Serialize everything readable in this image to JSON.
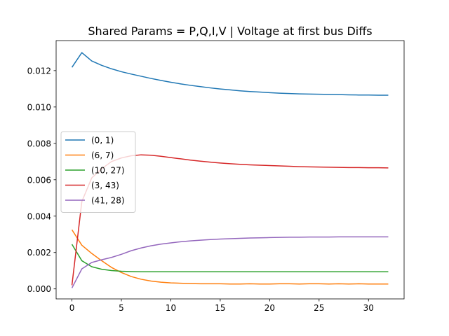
{
  "chart_data": {
    "type": "line",
    "title": "Shared Params =  P,Q,I,V | Voltage at first bus Diffs",
    "xlabel": "",
    "ylabel": "",
    "xlim": [
      -1.6,
      33.6
    ],
    "ylim": [
      -0.00055,
      0.01365
    ],
    "xticks": [
      0,
      5,
      10,
      15,
      20,
      25,
      30
    ],
    "xtick_labels": [
      "0",
      "5",
      "10",
      "15",
      "20",
      "25",
      "30"
    ],
    "yticks": [
      0.0,
      0.002,
      0.004,
      0.006,
      0.008,
      0.01,
      0.012
    ],
    "ytick_labels": [
      "0.000",
      "0.002",
      "0.004",
      "0.006",
      "0.008",
      "0.010",
      "0.012"
    ],
    "grid": false,
    "legend_position": "center-left",
    "x": [
      0,
      1,
      2,
      3,
      4,
      5,
      6,
      7,
      8,
      9,
      10,
      11,
      12,
      13,
      14,
      15,
      16,
      17,
      18,
      19,
      20,
      21,
      22,
      23,
      24,
      25,
      26,
      27,
      28,
      29,
      30,
      31,
      32
    ],
    "series": [
      {
        "name": "(0, 1)",
        "color": "#1f77b4",
        "values": [
          0.01218,
          0.01299,
          0.01253,
          0.01229,
          0.0121,
          0.01194,
          0.01181,
          0.01169,
          0.01157,
          0.01146,
          0.01136,
          0.01127,
          0.01119,
          0.01112,
          0.01105,
          0.01099,
          0.01094,
          0.01089,
          0.01085,
          0.01082,
          0.01079,
          0.01076,
          0.01074,
          0.01072,
          0.01071,
          0.0107,
          0.01069,
          0.01068,
          0.01067,
          0.01066,
          0.01066,
          0.01065,
          0.01065
        ]
      },
      {
        "name": "(6, 7)",
        "color": "#ff7f0e",
        "values": [
          0.00325,
          0.0024,
          0.00195,
          0.00155,
          0.00118,
          0.0009,
          0.00068,
          0.00053,
          0.00043,
          0.00037,
          0.00033,
          0.00031,
          0.00029,
          0.00028,
          0.00028,
          0.00028,
          0.00027,
          0.00027,
          0.00028,
          0.00027,
          0.00027,
          0.00028,
          0.00028,
          0.00027,
          0.00028,
          0.00028,
          0.00027,
          0.00028,
          0.00027,
          0.00028,
          0.00027,
          0.00027,
          0.00027
        ]
      },
      {
        "name": "(10, 27)",
        "color": "#2ca02c",
        "values": [
          0.00245,
          0.00155,
          0.00122,
          0.00108,
          0.00101,
          0.00097,
          0.00095,
          0.00094,
          0.00094,
          0.00094,
          0.00094,
          0.00094,
          0.00094,
          0.00094,
          0.00094,
          0.00094,
          0.00094,
          0.00094,
          0.00094,
          0.00094,
          0.00094,
          0.00094,
          0.00094,
          0.00094,
          0.00094,
          0.00094,
          0.00094,
          0.00094,
          0.00094,
          0.00094,
          0.00094,
          0.00094,
          0.00094
        ]
      },
      {
        "name": "(3, 43)",
        "color": "#d62728",
        "values": [
          0.0002,
          0.0048,
          0.0061,
          0.0066,
          0.007,
          0.0072,
          0.00732,
          0.00737,
          0.00735,
          0.00729,
          0.00722,
          0.00715,
          0.00708,
          0.00702,
          0.00697,
          0.00692,
          0.00688,
          0.00685,
          0.00682,
          0.0068,
          0.00678,
          0.00676,
          0.00674,
          0.00672,
          0.00671,
          0.0067,
          0.00669,
          0.00668,
          0.00667,
          0.00667,
          0.00666,
          0.00666,
          0.00665
        ]
      },
      {
        "name": "(41, 28)",
        "color": "#9467bd",
        "values": [
          5e-05,
          0.0011,
          0.00145,
          0.0016,
          0.00173,
          0.0019,
          0.0021,
          0.00225,
          0.00237,
          0.00246,
          0.00253,
          0.00259,
          0.00264,
          0.00268,
          0.00271,
          0.00274,
          0.00276,
          0.00278,
          0.0028,
          0.00281,
          0.00282,
          0.00283,
          0.00284,
          0.00284,
          0.00285,
          0.00285,
          0.00285,
          0.00286,
          0.00286,
          0.00286,
          0.00286,
          0.00286,
          0.00286
        ]
      }
    ]
  }
}
